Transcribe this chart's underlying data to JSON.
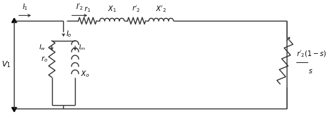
{
  "line_color": "#303030",
  "line_width": 1.0,
  "fig_width": 4.74,
  "fig_height": 1.75,
  "dpi": 100
}
